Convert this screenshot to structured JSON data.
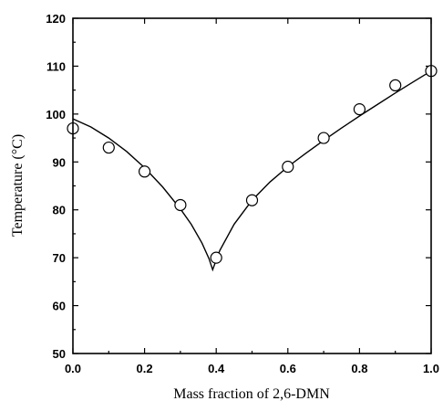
{
  "chart_data": {
    "type": "scatter",
    "title": "",
    "xlabel": "Mass fraction of 2,6-DMN",
    "ylabel": "Temperature (°C)",
    "xlim": [
      0.0,
      1.0
    ],
    "ylim": [
      50,
      120
    ],
    "xticks": [
      "0.0",
      "0.2",
      "0.4",
      "0.6",
      "0.8",
      "1.0"
    ],
    "yticks": [
      "50",
      "60",
      "70",
      "80",
      "90",
      "100",
      "110",
      "120"
    ],
    "grid": false,
    "legend": "none",
    "series": [
      {
        "kind": "points",
        "x": [
          0.0,
          0.1,
          0.2,
          0.3,
          0.4,
          0.5,
          0.6,
          0.7,
          0.8,
          0.9,
          1.0
        ],
        "y": [
          97,
          93,
          88,
          81,
          70,
          82,
          89,
          95,
          101,
          106,
          109
        ]
      },
      {
        "kind": "curve",
        "x": [
          0.0,
          0.05,
          0.1,
          0.15,
          0.2,
          0.25,
          0.3,
          0.33,
          0.36,
          0.38,
          0.39,
          0.41,
          0.45,
          0.5,
          0.55,
          0.6,
          0.65,
          0.7,
          0.75,
          0.8,
          0.85,
          0.9,
          0.95,
          1.0
        ],
        "y": [
          99,
          97.3,
          95,
          92.2,
          88.8,
          84.8,
          80.2,
          77,
          73.1,
          69.8,
          67.5,
          71.5,
          77,
          82,
          85.8,
          89,
          91.8,
          94.5,
          97.1,
          99.6,
          102,
          104.4,
          106.7,
          109
        ]
      }
    ]
  }
}
